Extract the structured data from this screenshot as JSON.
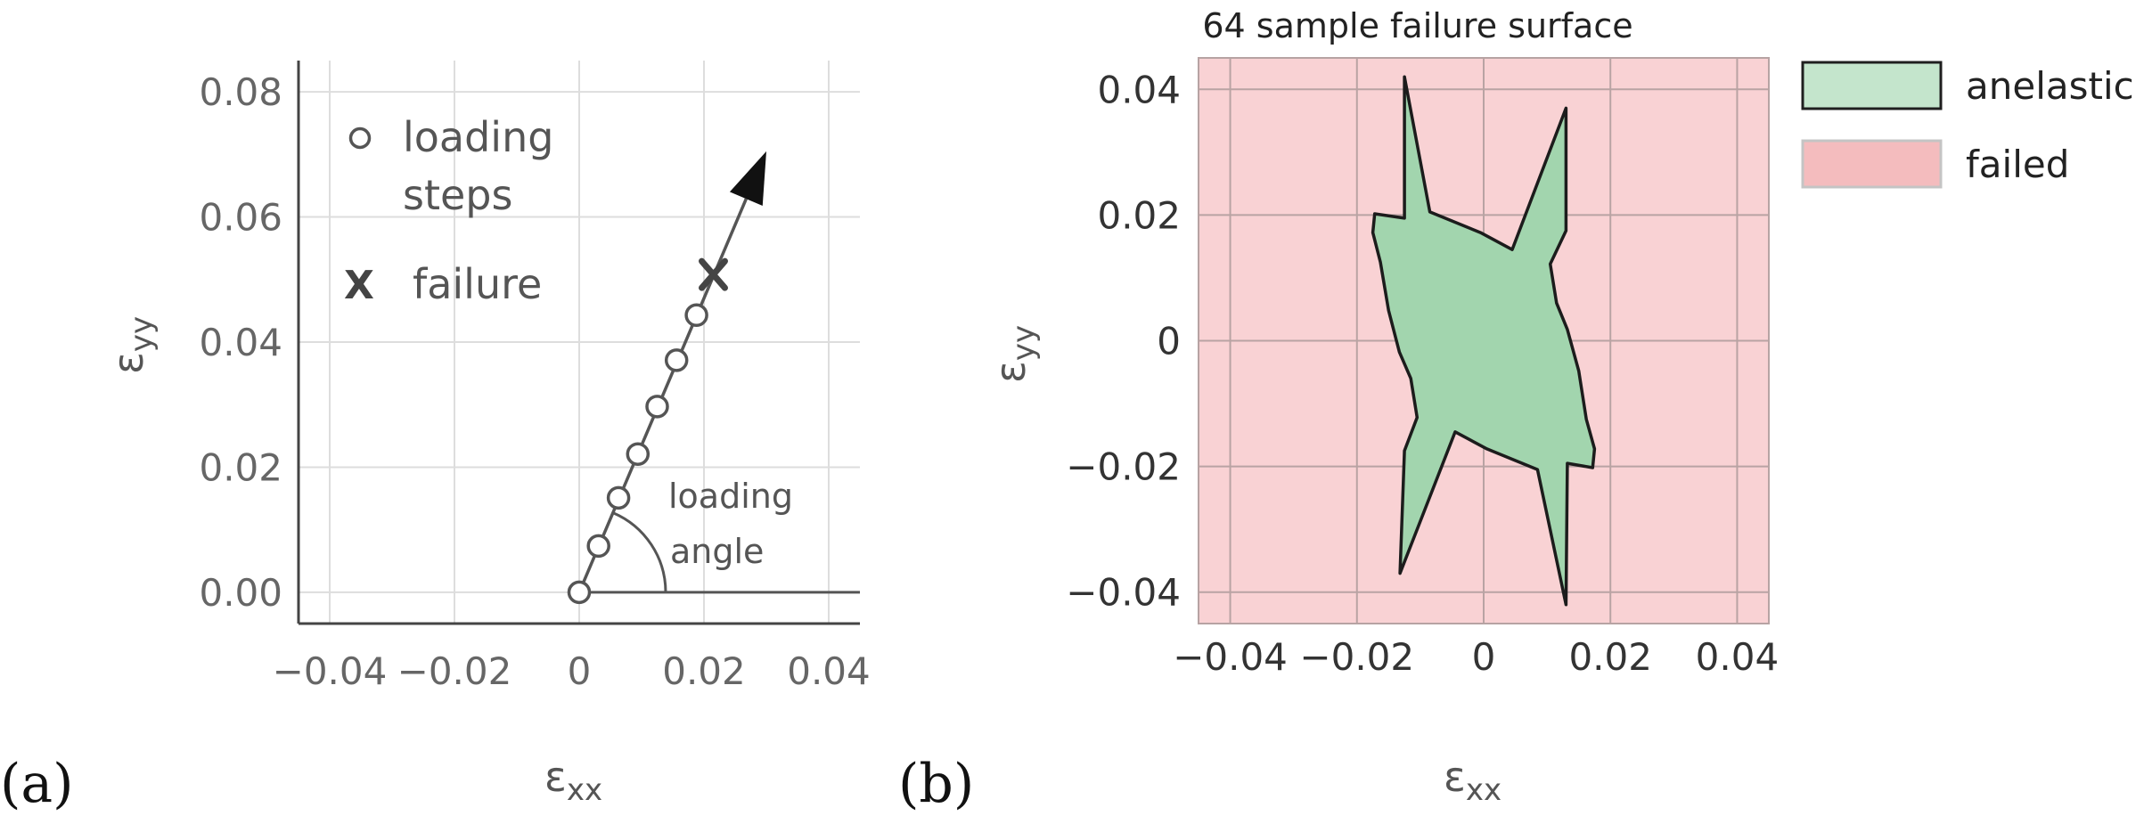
{
  "chart_data": [
    {
      "panel": "(a)",
      "type": "line",
      "title": "",
      "xlabel": "ε",
      "xlabel_sub": "xx",
      "ylabel": "ε",
      "ylabel_sub": "yy",
      "xlim": [
        -0.045,
        0.045
      ],
      "ylim": [
        -0.005,
        0.085
      ],
      "xticks": [
        -0.04,
        -0.02,
        0,
        0.02,
        0.04
      ],
      "xtick_labels": [
        "−0.04",
        "−0.02",
        "0",
        "0.02",
        "0.04"
      ],
      "yticks": [
        0,
        0.02,
        0.04,
        0.06,
        0.08
      ],
      "ytick_labels": [
        "0.00",
        "0.02",
        "0.04",
        "0.06",
        "0.08"
      ],
      "grid": true,
      "series": [
        {
          "name": "loading steps",
          "marker": "circle",
          "x": [
            0,
            0.0031,
            0.0063,
            0.0094,
            0.0125,
            0.0156,
            0.0188
          ],
          "y": [
            0,
            0.0074,
            0.0151,
            0.0221,
            0.0297,
            0.0371,
            0.0443
          ]
        },
        {
          "name": "failure",
          "marker": "x",
          "x": [
            0.0215
          ],
          "y": [
            0.0508
          ]
        }
      ],
      "loading_path": {
        "from": [
          0,
          0
        ],
        "to": [
          0.03,
          0.0705
        ]
      },
      "reference_line": {
        "from": [
          0,
          0
        ],
        "to": [
          0.045,
          0
        ]
      },
      "legend": {
        "loading_line1": "loading",
        "loading_line2": "steps",
        "failure_symbol": "X",
        "failure_label": "failure"
      },
      "annotation": {
        "line1": "loading",
        "line2": "angle"
      }
    },
    {
      "panel": "(b)",
      "type": "area",
      "title": "64 sample failure surface",
      "xlabel": "ε",
      "xlabel_sub": "xx",
      "ylabel": "ε",
      "ylabel_sub": "yy",
      "xlim": [
        -0.045,
        0.045
      ],
      "ylim": [
        -0.045,
        0.045
      ],
      "xticks": [
        -0.04,
        -0.02,
        0,
        0.02,
        0.04
      ],
      "xtick_labels": [
        "−0.04",
        "−0.02",
        "0",
        "0.02",
        "0.04"
      ],
      "yticks": [
        -0.04,
        -0.02,
        0,
        0.02,
        0.04
      ],
      "ytick_labels": [
        "−0.04",
        "−0.02",
        "0",
        "0.02",
        "0.04"
      ],
      "grid": true,
      "legend": [
        {
          "label": "anelastic",
          "color": "#c4e5cc"
        },
        {
          "label": "failed",
          "color": "#f4bcbe"
        }
      ],
      "failed_region_color": "#f9d2d4",
      "anelastic_region_color": "#a2d5ae",
      "anelastic_boundary": {
        "x": [
          -0.0125,
          -0.0085,
          -0.0005,
          0.0045,
          0.013,
          0.013,
          0.0105,
          0.0115,
          0.0132,
          0.015,
          0.0162,
          0.0175,
          0.0172,
          0.0132,
          0.013,
          0.0085,
          0.0005,
          -0.0045,
          -0.0132,
          -0.0125,
          -0.0105,
          -0.0115,
          -0.0133,
          -0.015,
          -0.0163,
          -0.0175,
          -0.0172,
          -0.0125,
          -0.0125
        ],
        "y": [
          0.042,
          0.0205,
          0.0172,
          0.0145,
          0.037,
          0.0175,
          0.0122,
          0.006,
          0.0018,
          -0.0048,
          -0.0125,
          -0.0172,
          -0.0202,
          -0.0195,
          -0.042,
          -0.0205,
          -0.0172,
          -0.0145,
          -0.037,
          -0.0175,
          -0.0122,
          -0.006,
          -0.0018,
          0.0048,
          0.0125,
          0.0172,
          0.0202,
          0.0195,
          0.042
        ]
      }
    }
  ],
  "labels": {
    "panel_a": "(a)",
    "panel_b": "(b)"
  },
  "colors": {
    "ink": "#555555",
    "axis": "#444444",
    "boundary": "#1c1c1c"
  }
}
